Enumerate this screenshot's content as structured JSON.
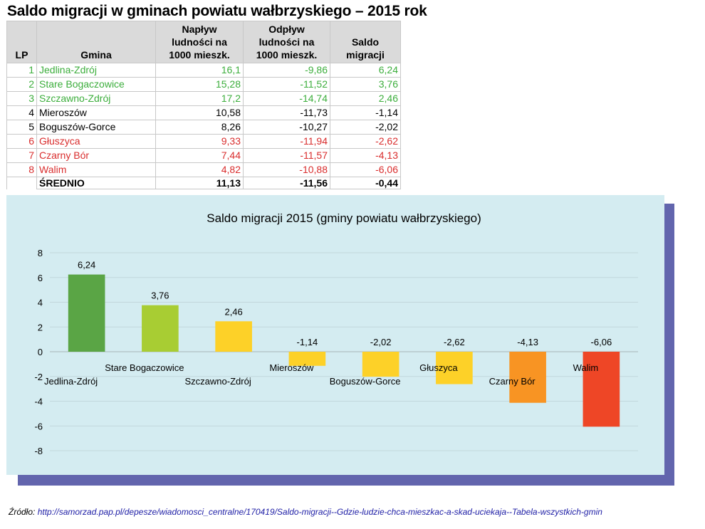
{
  "title": "Saldo migracji w gminach powiatu wałbrzyskiego – 2015 rok",
  "table": {
    "headers": {
      "lp": "LP",
      "gmina": "Gmina",
      "naplyw": [
        "Napływ",
        "ludności na",
        "1000 mieszk."
      ],
      "odplyw": [
        "Odpływ",
        "ludności na",
        "1000 mieszk."
      ],
      "saldo": [
        "Saldo",
        "migracji"
      ]
    },
    "rows": [
      {
        "lp": "1",
        "gmina": "Jedlina-Zdrój",
        "naplyw": "16,1",
        "odplyw": "-9,86",
        "saldo": "6,24",
        "status": "green"
      },
      {
        "lp": "2",
        "gmina": "Stare Bogaczowice",
        "naplyw": "15,28",
        "odplyw": "-11,52",
        "saldo": "3,76",
        "status": "green"
      },
      {
        "lp": "3",
        "gmina": "Szczawno-Zdrój",
        "naplyw": "17,2",
        "odplyw": "-14,74",
        "saldo": "2,46",
        "status": "green"
      },
      {
        "lp": "4",
        "gmina": "Mieroszów",
        "naplyw": "10,58",
        "odplyw": "-11,73",
        "saldo": "-1,14",
        "status": "black"
      },
      {
        "lp": "5",
        "gmina": "Boguszów-Gorce",
        "naplyw": "8,26",
        "odplyw": "-10,27",
        "saldo": "-2,02",
        "status": "black"
      },
      {
        "lp": "6",
        "gmina": "Głuszyca",
        "naplyw": "9,33",
        "odplyw": "-11,94",
        "saldo": "-2,62",
        "status": "red"
      },
      {
        "lp": "7",
        "gmina": "Czarny Bór",
        "naplyw": "7,44",
        "odplyw": "-11,57",
        "saldo": "-4,13",
        "status": "red"
      },
      {
        "lp": "8",
        "gmina": "Walim",
        "naplyw": "4,82",
        "odplyw": "-10,88",
        "saldo": "-6,06",
        "status": "red"
      }
    ],
    "total": {
      "label": "ŚREDNIO",
      "naplyw": "11,13",
      "odplyw": "-11,56",
      "saldo": "-0,44"
    }
  },
  "chart_data": {
    "type": "bar",
    "title": "Saldo migracji 2015 (gminy powiatu wałbrzyskiego)",
    "categories": [
      "Jedlina-Zdrój",
      "Stare Bogaczowice",
      "Szczawno-Zdrój",
      "Mieroszów",
      "Boguszów-Gorce",
      "Głuszyca",
      "Czarny Bór",
      "Walim"
    ],
    "values": [
      6.24,
      3.76,
      2.46,
      -1.14,
      -2.02,
      -2.62,
      -4.13,
      -6.06
    ],
    "value_labels": [
      "6,24",
      "3,76",
      "2,46",
      "-1,14",
      "-2,02",
      "-2,62",
      "-4,13",
      "-6,06"
    ],
    "bar_colors": [
      "#5aa545",
      "#a8cd33",
      "#fdd128",
      "#fdd128",
      "#fdd128",
      "#fdd128",
      "#f89423",
      "#ee4626"
    ],
    "ylim": [
      -8,
      8
    ],
    "yticks": [
      8,
      6,
      4,
      2,
      0,
      -2,
      -4,
      -6,
      -8
    ],
    "grid": true,
    "xlabel": "",
    "ylabel": ""
  },
  "source": {
    "prefix": "Źródło: ",
    "url": "http://samorzad.pap.pl/depesze/wiadomosci_centralne/170419/Saldo-migracji--Gdzie-ludzie-chca-mieszkac-a-skad-uciekaja--Tabela-wszystkich-gmin"
  },
  "colors": {
    "positive_text": "#3cae3c",
    "negative_text": "#d92d2d",
    "chart_background": "#d4ecf1",
    "chart_shadow": "#6265ad",
    "header_background": "#dadada"
  }
}
